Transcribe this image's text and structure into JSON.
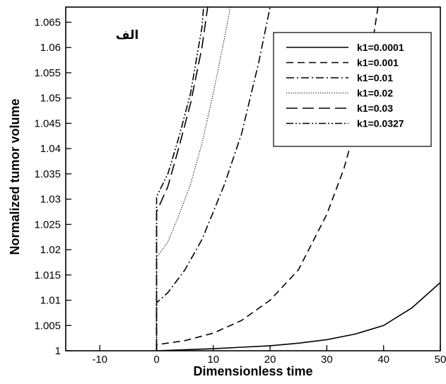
{
  "chart_data": {
    "type": "line",
    "xlabel": "Dimensionless time",
    "ylabel": "Normalized tumor volume",
    "xlim": [
      -16,
      50
    ],
    "ylim": [
      1,
      1.068
    ],
    "xticks": [
      -10,
      0,
      10,
      20,
      30,
      40,
      50
    ],
    "xtick_labels": [
      "-10",
      "0",
      "10",
      "20",
      "30",
      "40",
      "50"
    ],
    "yticks": [
      1,
      1.005,
      1.01,
      1.015,
      1.02,
      1.025,
      1.03,
      1.035,
      1.04,
      1.045,
      1.05,
      1.055,
      1.06,
      1.065
    ],
    "ytick_labels": [
      "1",
      "1.005",
      "1.01",
      "1.015",
      "1.02",
      "1.025",
      "1.03",
      "1.035",
      "1.04",
      "1.045",
      "1.05",
      "1.055",
      "1.06",
      "1.065"
    ],
    "annotation": "الف",
    "legend_position": "top-right",
    "grid": false,
    "series": [
      {
        "name": "k1=0.0001",
        "style": "solid",
        "x": [
          0,
          0,
          5,
          10,
          15,
          20,
          25,
          30,
          35,
          40,
          45,
          50
        ],
        "y": [
          1,
          1,
          1.0002,
          1.0004,
          1.0007,
          1.001,
          1.0015,
          1.0022,
          1.0033,
          1.005,
          1.0085,
          1.0135
        ]
      },
      {
        "name": "k1=0.001",
        "style": "dash",
        "x": [
          0,
          0,
          5,
          10,
          15,
          20,
          25,
          30,
          33,
          35,
          37,
          38,
          39
        ],
        "y": [
          1,
          1.0012,
          1.002,
          1.0035,
          1.006,
          1.01,
          1.016,
          1.027,
          1.036,
          1.044,
          1.054,
          1.0605,
          1.068
        ]
      },
      {
        "name": "k1=0.01",
        "style": "dashdot",
        "x": [
          0,
          0,
          2,
          5,
          8,
          10,
          12,
          15,
          18,
          20
        ],
        "y": [
          1,
          1.0095,
          1.0115,
          1.016,
          1.022,
          1.0275,
          1.033,
          1.043,
          1.057,
          1.068
        ]
      },
      {
        "name": "k1=0.02",
        "style": "dot",
        "x": [
          0,
          0,
          2,
          4,
          6,
          8,
          10,
          12,
          13
        ],
        "y": [
          1,
          1.0185,
          1.0215,
          1.027,
          1.033,
          1.041,
          1.051,
          1.062,
          1.068
        ]
      },
      {
        "name": "k1=0.03",
        "style": "longdash",
        "x": [
          0,
          0,
          2,
          4,
          6,
          8,
          9
        ],
        "y": [
          1,
          1.0275,
          1.0325,
          1.0405,
          1.049,
          1.06,
          1.068
        ]
      },
      {
        "name": "k1=0.0327",
        "style": "dashdotdot",
        "x": [
          0,
          0,
          2,
          4,
          6,
          8,
          8.3
        ],
        "y": [
          1,
          1.0305,
          1.035,
          1.0425,
          1.051,
          1.064,
          1.068
        ]
      }
    ]
  }
}
